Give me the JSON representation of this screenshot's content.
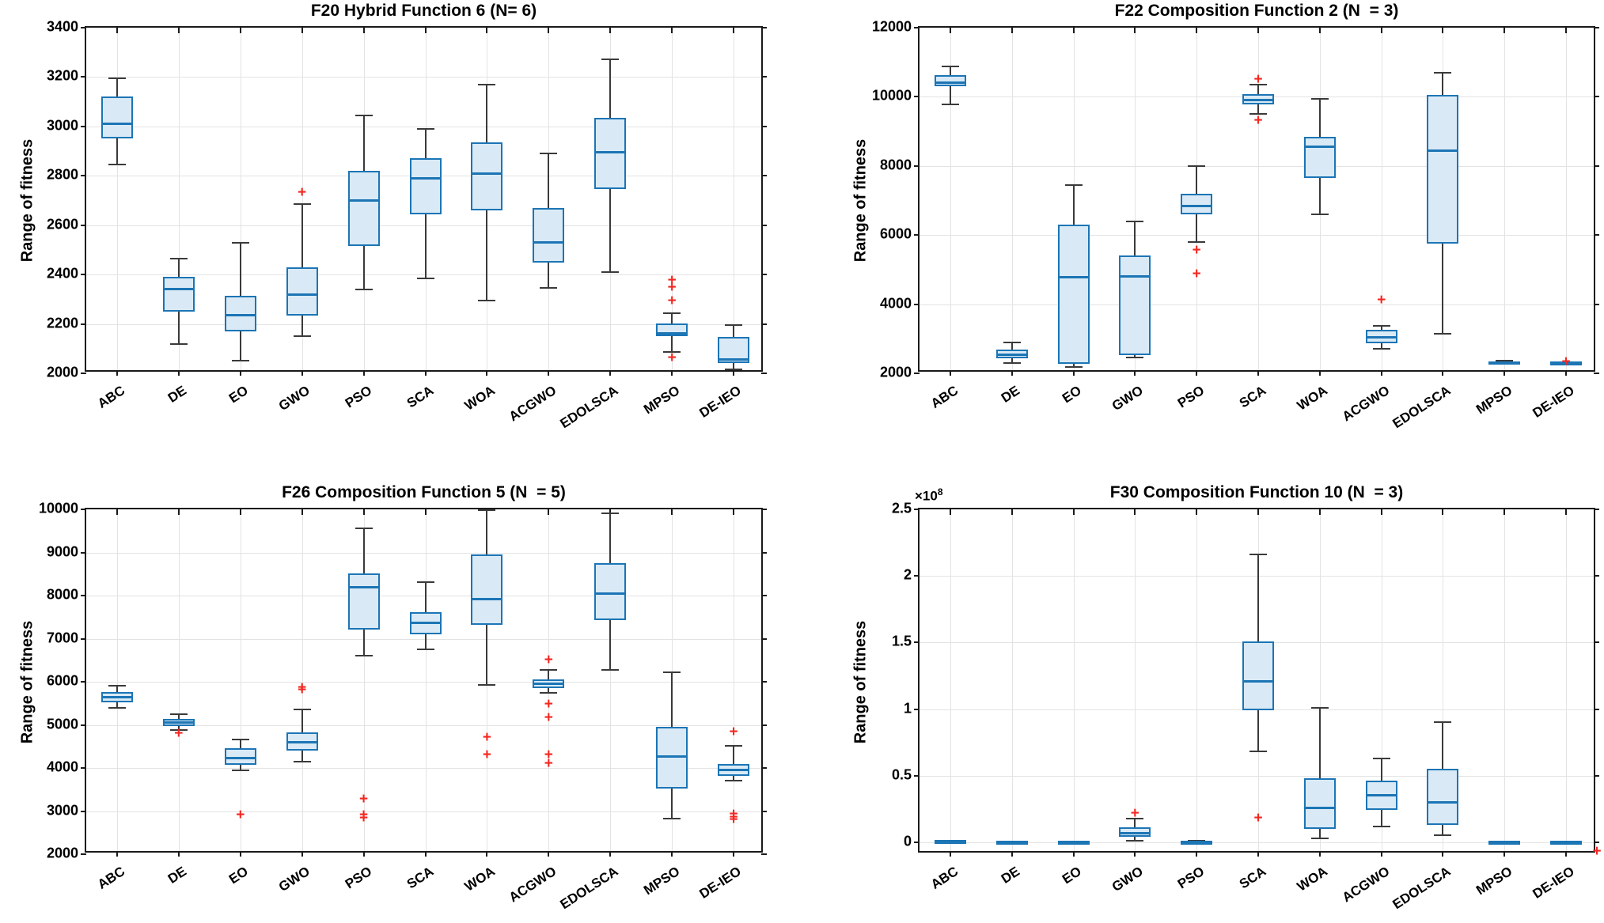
{
  "figure": {
    "kind": "matlab-style 2x2 boxplot figure",
    "colors": {
      "box_edge": "#1c75b5",
      "box_fill": "#d9eaf6",
      "median": "#1c75b5",
      "whisker": "#3a3a3a",
      "outlier": "#f52720",
      "grid": "#e3e3e3",
      "axis": "#1a1a1a",
      "background": "#ffffff"
    }
  },
  "chart_data": [
    {
      "id": "f20",
      "type": "box",
      "title": "F20 Hybrid Function 6 (N= 6)",
      "ylabel": "Range of fitness",
      "ylim": [
        2000,
        3400
      ],
      "yticks": [
        2000,
        2200,
        2400,
        2600,
        2800,
        3000,
        3200,
        3400
      ],
      "ytick_labels": [
        "2000",
        "2200",
        "2400",
        "2600",
        "2800",
        "3000",
        "3200",
        "3400"
      ],
      "grid": true,
      "categories": [
        "ABC",
        "DE",
        "EO",
        "GWO",
        "PSO",
        "SCA",
        "WOA",
        "ACGWO",
        "EDOLSCA",
        "MPSO",
        "DE-IEO"
      ],
      "boxes": [
        {
          "whislo": 2845,
          "q1": 2950,
          "med": 3010,
          "q3": 3120,
          "whishi": 3195,
          "fliers": []
        },
        {
          "whislo": 2120,
          "q1": 2250,
          "med": 2340,
          "q3": 2390,
          "whishi": 2465,
          "fliers": []
        },
        {
          "whislo": 2050,
          "q1": 2170,
          "med": 2235,
          "q3": 2315,
          "whishi": 2530,
          "fliers": []
        },
        {
          "whislo": 2150,
          "q1": 2235,
          "med": 2320,
          "q3": 2430,
          "whishi": 2685,
          "fliers": [
            2730
          ]
        },
        {
          "whislo": 2340,
          "q1": 2515,
          "med": 2700,
          "q3": 2820,
          "whishi": 3045,
          "fliers": []
        },
        {
          "whislo": 2385,
          "q1": 2645,
          "med": 2790,
          "q3": 2870,
          "whishi": 2990,
          "fliers": []
        },
        {
          "whislo": 2295,
          "q1": 2660,
          "med": 2810,
          "q3": 2935,
          "whishi": 3170,
          "fliers": []
        },
        {
          "whislo": 2345,
          "q1": 2450,
          "med": 2530,
          "q3": 2670,
          "whishi": 2890,
          "fliers": []
        },
        {
          "whislo": 2410,
          "q1": 2746,
          "med": 2894,
          "q3": 3035,
          "whishi": 3273,
          "fliers": []
        },
        {
          "whislo": 2086,
          "q1": 2152,
          "med": 2162,
          "q3": 2203,
          "whishi": 2242,
          "fliers": [
            2375,
            2345,
            2290,
            2060
          ]
        },
        {
          "whislo": 2015,
          "q1": 2043,
          "med": 2055,
          "q3": 2146,
          "whishi": 2196,
          "fliers": []
        }
      ]
    },
    {
      "id": "f22",
      "type": "box",
      "title": "F22 Composition Function 2 (N  = 3)",
      "ylabel": "Range of fitness",
      "ylim": [
        2000,
        12000
      ],
      "yticks": [
        2000,
        4000,
        6000,
        8000,
        10000,
        12000
      ],
      "ytick_labels": [
        "2000",
        "4000",
        "6000",
        "8000",
        "10000",
        "12000"
      ],
      "grid": true,
      "categories": [
        "ABC",
        "DE",
        "EO",
        "GWO",
        "PSO",
        "SCA",
        "WOA",
        "ACGWO",
        "EDOLSCA",
        "MPSO",
        "DE-IEO"
      ],
      "boxes": [
        {
          "whislo": 9770,
          "q1": 10300,
          "med": 10400,
          "q3": 10620,
          "whishi": 10880,
          "fliers": []
        },
        {
          "whislo": 2300,
          "q1": 2430,
          "med": 2540,
          "q3": 2680,
          "whishi": 2900,
          "fliers": []
        },
        {
          "whislo": 2180,
          "q1": 2270,
          "med": 4780,
          "q3": 6300,
          "whishi": 7450,
          "fliers": []
        },
        {
          "whislo": 2450,
          "q1": 2530,
          "med": 4800,
          "q3": 5400,
          "whishi": 6400,
          "fliers": []
        },
        {
          "whislo": 5800,
          "q1": 6600,
          "med": 6850,
          "q3": 7200,
          "whishi": 8000,
          "fliers": [
            5550,
            4850
          ]
        },
        {
          "whislo": 9500,
          "q1": 9780,
          "med": 9900,
          "q3": 10080,
          "whishi": 10350,
          "fliers": [
            10500,
            9300
          ]
        },
        {
          "whislo": 6600,
          "q1": 7650,
          "med": 8550,
          "q3": 8850,
          "whishi": 9950,
          "fliers": []
        },
        {
          "whislo": 2700,
          "q1": 2870,
          "med": 3050,
          "q3": 3250,
          "whishi": 3380,
          "fliers": [
            4100
          ]
        },
        {
          "whislo": 3150,
          "q1": 5750,
          "med": 8450,
          "q3": 10050,
          "whishi": 10700,
          "fliers": []
        },
        {
          "whislo": 2290,
          "q1": 2300,
          "med": 2320,
          "q3": 2345,
          "whishi": 2355,
          "fliers": []
        },
        {
          "whislo": 2280,
          "q1": 2290,
          "med": 2305,
          "q3": 2320,
          "whishi": 2330,
          "fliers": [
            2310
          ]
        }
      ]
    },
    {
      "id": "f26",
      "type": "box",
      "title": "F26 Composition Function 5 (N  = 5)",
      "ylabel": "Range of fitness",
      "ylim": [
        2000,
        10000
      ],
      "yticks": [
        2000,
        3000,
        4000,
        5000,
        6000,
        7000,
        8000,
        9000,
        10000
      ],
      "ytick_labels": [
        "2000",
        "3000",
        "4000",
        "5000",
        "6000",
        "7000",
        "8000",
        "9000",
        "10000"
      ],
      "grid": true,
      "categories": [
        "ABC",
        "DE",
        "EO",
        "GWO",
        "PSO",
        "SCA",
        "WOA",
        "ACGWO",
        "EDOLSCA",
        "MPSO",
        "DE-IEO"
      ],
      "boxes": [
        {
          "whislo": 5400,
          "q1": 5520,
          "med": 5650,
          "q3": 5760,
          "whishi": 5900,
          "fliers": []
        },
        {
          "whislo": 4880,
          "q1": 4980,
          "med": 5060,
          "q3": 5130,
          "whishi": 5250,
          "fliers": [
            4780
          ]
        },
        {
          "whislo": 3950,
          "q1": 4080,
          "med": 4230,
          "q3": 4450,
          "whishi": 4660,
          "fliers": [
            2900
          ]
        },
        {
          "whislo": 4150,
          "q1": 4400,
          "med": 4600,
          "q3": 4820,
          "whishi": 5350,
          "fliers": [
            5850,
            5790
          ]
        },
        {
          "whislo": 6600,
          "q1": 7220,
          "med": 8200,
          "q3": 8520,
          "whishi": 9560,
          "fliers": [
            3270,
            2900,
            2820
          ]
        },
        {
          "whislo": 6750,
          "q1": 7100,
          "med": 7360,
          "q3": 7620,
          "whishi": 8310,
          "fliers": []
        },
        {
          "whislo": 5930,
          "q1": 7330,
          "med": 7920,
          "q3": 8960,
          "whishi": 9980,
          "fliers": [
            4700,
            4300
          ]
        },
        {
          "whislo": 5750,
          "q1": 5850,
          "med": 5950,
          "q3": 6060,
          "whishi": 6280,
          "fliers": [
            6500,
            5460,
            5160,
            4300,
            4100
          ]
        },
        {
          "whislo": 6270,
          "q1": 7430,
          "med": 8050,
          "q3": 8760,
          "whishi": 9900,
          "fliers": []
        },
        {
          "whislo": 2820,
          "q1": 3530,
          "med": 4270,
          "q3": 4950,
          "whishi": 6220,
          "fliers": []
        },
        {
          "whislo": 3700,
          "q1": 3820,
          "med": 3950,
          "q3": 4100,
          "whishi": 4520,
          "fliers": [
            4820,
            2910,
            2850,
            2780
          ]
        }
      ]
    },
    {
      "id": "f30",
      "type": "box",
      "title": "F30 Composition Function 10 (N  = 3)",
      "ylabel": "Range of fitness",
      "unit_exponent": {
        "base": "×10",
        "power": "8"
      },
      "ylim": [
        -0.09,
        2.5
      ],
      "yticks": [
        0,
        0.5,
        1,
        1.5,
        2,
        2.5
      ],
      "ytick_labels": [
        "0",
        "0.5",
        "1",
        "1.5",
        "2",
        "2.5"
      ],
      "grid": true,
      "categories": [
        "ABC",
        "DE",
        "EO",
        "GWO",
        "PSO",
        "SCA",
        "WOA",
        "ACGWO",
        "EDOLSCA",
        "MPSO",
        "DE-IEO"
      ],
      "boxes": [
        {
          "whislo": 0.001,
          "q1": 0.002,
          "med": 0.006,
          "q3": 0.01,
          "whishi": 0.012,
          "fliers": []
        },
        {
          "whislo": 0.0,
          "q1": 0.001,
          "med": 0.003,
          "q3": 0.005,
          "whishi": 0.006,
          "fliers": []
        },
        {
          "whislo": 0.0,
          "q1": 0.001,
          "med": 0.003,
          "q3": 0.005,
          "whishi": 0.006,
          "fliers": []
        },
        {
          "whislo": 0.01,
          "q1": 0.04,
          "med": 0.07,
          "q3": 0.11,
          "whishi": 0.18,
          "fliers": [
            0.21
          ]
        },
        {
          "whislo": 0.001,
          "q1": 0.002,
          "med": 0.005,
          "q3": 0.008,
          "whishi": 0.01,
          "fliers": []
        },
        {
          "whislo": 0.68,
          "q1": 0.99,
          "med": 1.21,
          "q3": 1.51,
          "whishi": 2.16,
          "fliers": [
            0.18
          ]
        },
        {
          "whislo": 0.03,
          "q1": 0.1,
          "med": 0.26,
          "q3": 0.48,
          "whishi": 1.01,
          "fliers": []
        },
        {
          "whislo": 0.12,
          "q1": 0.24,
          "med": 0.35,
          "q3": 0.46,
          "whishi": 0.63,
          "fliers": []
        },
        {
          "whislo": 0.05,
          "q1": 0.13,
          "med": 0.3,
          "q3": 0.55,
          "whishi": 0.9,
          "fliers": []
        },
        {
          "whislo": -0.004,
          "q1": -0.002,
          "med": 0.0,
          "q3": 0.004,
          "whishi": 0.006,
          "fliers": []
        },
        {
          "whislo": -0.004,
          "q1": -0.002,
          "med": 0.0,
          "q3": 0.004,
          "whishi": 0.006,
          "fliers": []
        }
      ],
      "corner_flier": {
        "x_frac": 1.0,
        "value": -0.075
      }
    }
  ]
}
